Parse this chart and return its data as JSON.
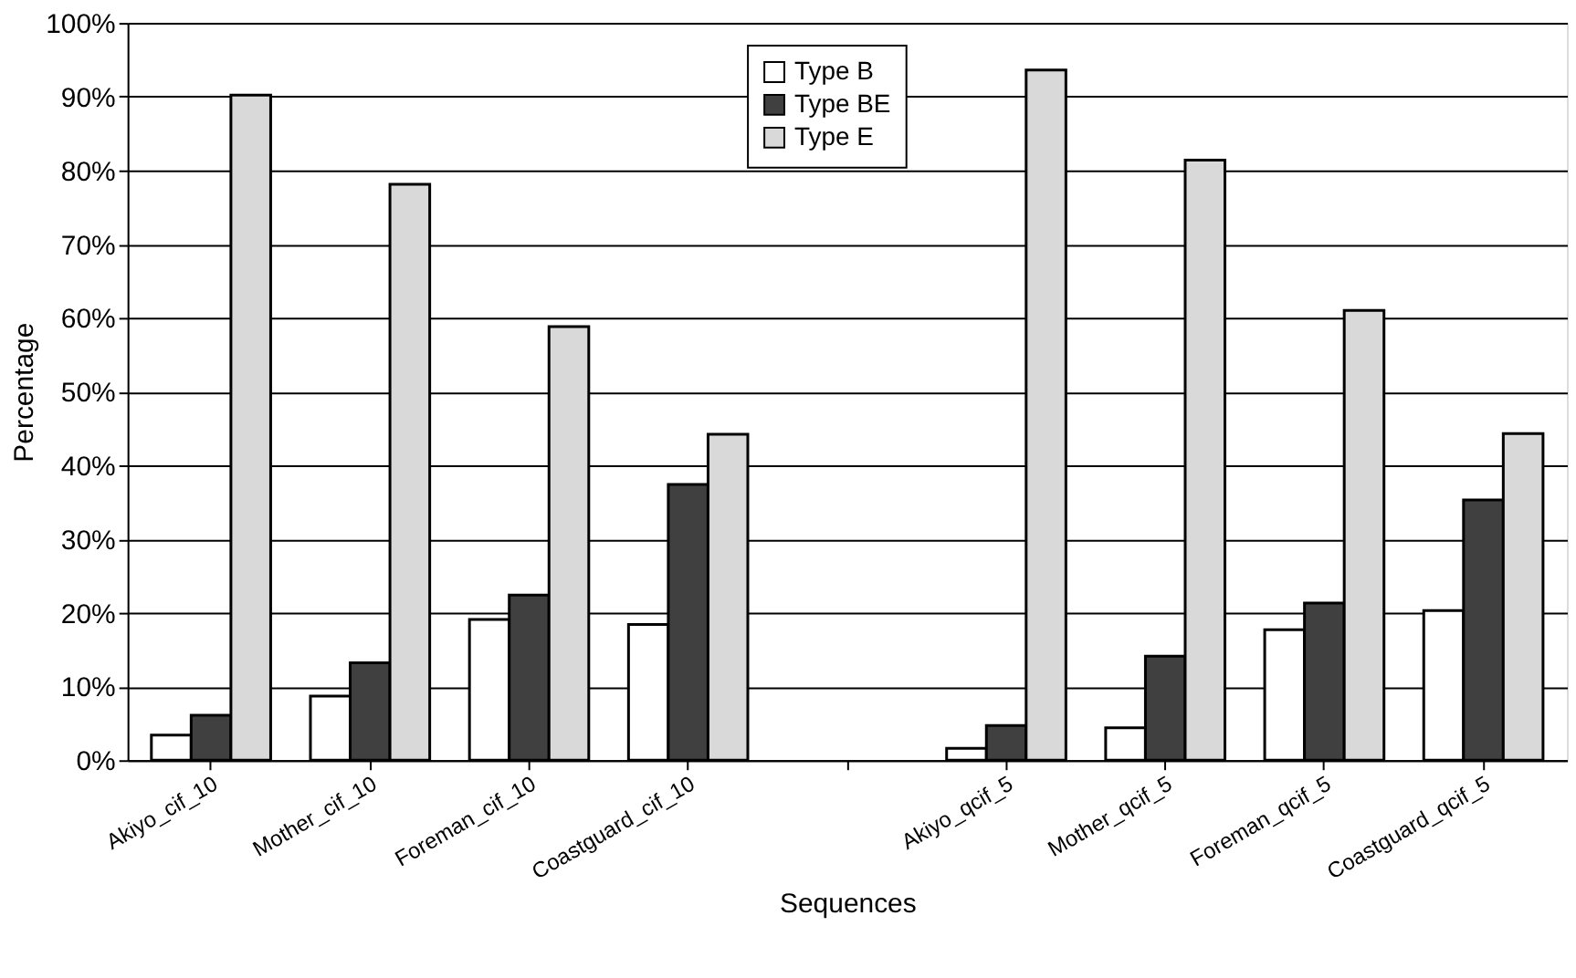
{
  "chart_data": {
    "type": "bar",
    "xlabel": "Sequences",
    "ylabel": "Percentage",
    "categories": [
      "Akiyo_cif_10",
      "Mother_cif_10",
      "Foreman_cif_10",
      "Coastguard_cif_10",
      null,
      "Akiyo_qcif_5",
      "Mother_qcif_5",
      "Foreman_qcif_5",
      "Coastguard_qcif_5"
    ],
    "series": [
      {
        "name": "Type B",
        "color": "#ffffff",
        "values": [
          3.4,
          8.7,
          19.1,
          18.4,
          null,
          1.6,
          4.4,
          17.7,
          20.3
        ]
      },
      {
        "name": "Type BE",
        "color": "#404040",
        "values": [
          6.1,
          13.2,
          22.4,
          37.4,
          null,
          4.7,
          14.1,
          21.3,
          35.3
        ]
      },
      {
        "name": "Type E",
        "color": "#d9d9d9",
        "values": [
          90.2,
          78.1,
          58.8,
          44.2,
          null,
          93.6,
          81.4,
          61.0,
          44.3
        ]
      }
    ],
    "ylim": [
      0,
      100
    ],
    "yticks": [
      {
        "value": 0,
        "label": "0%"
      },
      {
        "value": 10,
        "label": "10%"
      },
      {
        "value": 20,
        "label": "20%"
      },
      {
        "value": 30,
        "label": "30%"
      },
      {
        "value": 40,
        "label": "40%"
      },
      {
        "value": 50,
        "label": "50%"
      },
      {
        "value": 60,
        "label": "60%"
      },
      {
        "value": 70,
        "label": "70%"
      },
      {
        "value": 80,
        "label": "80%"
      },
      {
        "value": 90,
        "label": "90%"
      },
      {
        "value": 100,
        "label": "100%"
      }
    ],
    "grid": "y",
    "legend": "top"
  }
}
